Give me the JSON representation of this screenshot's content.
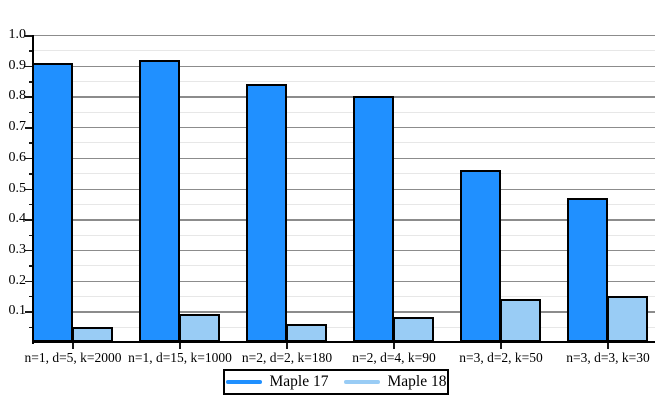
{
  "chart_data": {
    "type": "bar",
    "title": "",
    "xlabel": "",
    "ylabel": "",
    "categories": [
      "n=1, d=5, k=2000",
      "n=1, d=15, k=1000",
      "n=2, d=2, k=180",
      "n=2, d=4, k=90",
      "n=3, d=2, k=50",
      "n=3, d=3, k=30"
    ],
    "series": [
      {
        "name": "Maple 17",
        "color": "#2090FF",
        "values": [
          0.91,
          0.92,
          0.84,
          0.8,
          0.56,
          0.47
        ]
      },
      {
        "name": "Maple 18",
        "color": "#99CCF5",
        "values": [
          0.05,
          0.09,
          0.06,
          0.08,
          0.14,
          0.15
        ]
      }
    ],
    "ylim": [
      0,
      1.0
    ],
    "yticks": [
      {
        "v": 1.0,
        "label": "1.0"
      },
      {
        "v": 0.9,
        "label": "0.9"
      },
      {
        "v": 0.8,
        "label": "0.8"
      },
      {
        "v": 0.7,
        "label": "0.7"
      },
      {
        "v": 0.6,
        "label": "0.6"
      },
      {
        "v": 0.5,
        "label": "0.5"
      },
      {
        "v": 0.4,
        "label": "0.4"
      },
      {
        "v": 0.3,
        "label": "0.3"
      },
      {
        "v": 0.2,
        "label": "0.2"
      },
      {
        "v": 0.1,
        "label": "0.1"
      }
    ],
    "ytick_minor_step": 0.05,
    "grid": "horizontal major+minor, no vertical grid",
    "legend_position": "bottom-center boxed",
    "colors": {
      "bar_border": "#000000",
      "axis": "#000000",
      "major_grid": "#8C8C8C",
      "minor_grid": "#E7E7E7",
      "background": "#FFFFFF"
    }
  },
  "legend": {
    "items": [
      {
        "label": "Maple 17",
        "color": "#2090FF"
      },
      {
        "label": "Maple 18",
        "color": "#99CCF5"
      }
    ]
  }
}
